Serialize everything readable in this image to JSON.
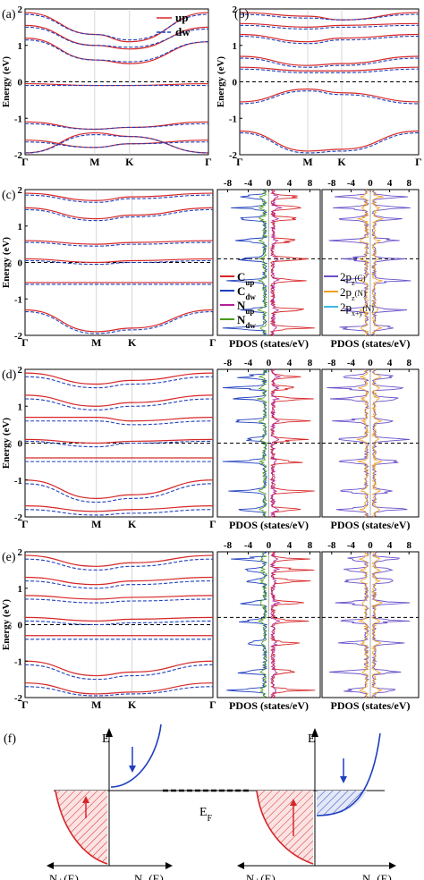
{
  "figure": {
    "panel_labels": [
      "(a)",
      "(b)",
      "(c)",
      "(d)",
      "(e)",
      "(f)"
    ],
    "band_ylabel": "Energy (eV)",
    "band_xticks": [
      "Γ",
      "M",
      "K",
      "Γ"
    ],
    "pdos_xlabel": "PDOS (states/eV)",
    "pdos_xticks": [
      "-8",
      "-4",
      "0",
      "4",
      "8"
    ],
    "band_yticks": [
      "2",
      "1",
      "0",
      "-1",
      "-2"
    ],
    "legend_spin": [
      {
        "label": "up",
        "color": "#d62728",
        "style": "solid"
      },
      {
        "label": "dw",
        "color": "#1f3fbf",
        "style": "dashed"
      }
    ],
    "legend_pdos_atoms": [
      {
        "label": "C",
        "sub": "up",
        "color": "#d62728"
      },
      {
        "label": "C",
        "sub": "dw",
        "color": "#1f3fbf"
      },
      {
        "label": "N",
        "sub": "up",
        "color": "#b0209a"
      },
      {
        "label": "N",
        "sub": "dw",
        "color": "#4a9a1a"
      }
    ],
    "legend_pdos_orbitals": [
      {
        "label": "2p",
        "sub": "z",
        "suffix": "(C)",
        "color": "#6a4fc8"
      },
      {
        "label": "2p",
        "sub": "z",
        "suffix": "(N)",
        "color": "#f0a020"
      },
      {
        "label": "2p",
        "sub": "x+y",
        "suffix": "(N)",
        "color": "#3fb8e0"
      }
    ],
    "schematic": {
      "e_axis_label": "E",
      "fermi_label": "E",
      "fermi_sub": "F",
      "left_axis_labels": [
        "N₊(E)",
        "N₋(E)"
      ],
      "right_axis_labels": [
        "N₊(E)",
        "N₋(E)"
      ]
    }
  },
  "chart_data": [
    {
      "panel": "(a)",
      "type": "line",
      "xlabel": "",
      "ylabel": "Energy (eV)",
      "ylim": [
        -2,
        2
      ],
      "x": [
        "Γ",
        "M",
        "K",
        "Γ"
      ],
      "series": [
        {
          "name": "up"
        },
        {
          "name": "dw"
        }
      ],
      "bands_up": [
        [
          1.9,
          1.3,
          1.1,
          1.9
        ],
        [
          1.55,
          1.0,
          0.9,
          1.5
        ],
        [
          1.2,
          0.6,
          0.5,
          1.1
        ],
        [
          -0.05,
          -0.1,
          -0.1,
          -0.05
        ],
        [
          -1.1,
          -1.3,
          -1.25,
          -1.1
        ],
        [
          -1.6,
          -1.8,
          -1.7,
          -1.6
        ],
        [
          -1.95,
          -1.4,
          -1.5,
          -1.95
        ]
      ],
      "bands_dw": [
        [
          1.85,
          1.3,
          1.15,
          1.85
        ],
        [
          1.5,
          1.0,
          0.95,
          1.45
        ],
        [
          1.15,
          0.6,
          0.55,
          1.1
        ],
        [
          -0.1,
          -0.1,
          -0.1,
          -0.1
        ],
        [
          -1.15,
          -1.3,
          -1.25,
          -1.15
        ],
        [
          -1.65,
          -1.8,
          -1.7,
          -1.65
        ],
        [
          -1.95,
          -1.45,
          -1.5,
          -1.95
        ]
      ]
    },
    {
      "panel": "(b)",
      "type": "line",
      "xlabel": "",
      "ylabel": "Energy (eV)",
      "ylim": [
        -2,
        2
      ],
      "x": [
        "Γ",
        "M",
        "K",
        "Γ"
      ],
      "bands_up": [
        [
          1.9,
          1.8,
          1.7,
          1.9
        ],
        [
          1.6,
          1.5,
          1.55,
          1.6
        ],
        [
          1.3,
          1.1,
          1.2,
          1.3
        ],
        [
          0.7,
          0.45,
          0.5,
          0.7
        ],
        [
          0.4,
          0.3,
          0.3,
          0.4
        ],
        [
          -0.55,
          -0.2,
          -0.3,
          -0.55
        ],
        [
          -1.35,
          -1.9,
          -1.85,
          -1.35
        ]
      ],
      "bands_dw": [
        [
          1.85,
          1.75,
          1.7,
          1.85
        ],
        [
          1.55,
          1.45,
          1.5,
          1.55
        ],
        [
          1.25,
          1.05,
          1.15,
          1.25
        ],
        [
          0.65,
          0.4,
          0.45,
          0.65
        ],
        [
          0.35,
          0.25,
          0.25,
          0.35
        ],
        [
          -0.6,
          -0.25,
          -0.35,
          -0.6
        ],
        [
          -1.4,
          -1.95,
          -1.9,
          -1.4
        ]
      ]
    },
    {
      "panel": "(c)",
      "type": "line",
      "xlabel": "",
      "ylabel": "Energy (eV)",
      "ylim": [
        -2,
        2
      ],
      "x": [
        "Γ",
        "M",
        "K",
        "Γ"
      ],
      "bands_up": [
        [
          1.9,
          1.7,
          1.8,
          1.9
        ],
        [
          1.5,
          1.2,
          1.3,
          1.5
        ],
        [
          0.6,
          0.5,
          0.55,
          0.6
        ],
        [
          0.1,
          0.0,
          0.05,
          0.1
        ],
        [
          -0.55,
          -0.55,
          -0.55,
          -0.55
        ],
        [
          -1.3,
          -1.9,
          -1.8,
          -1.3
        ]
      ],
      "bands_dw": [
        [
          1.85,
          1.65,
          1.75,
          1.85
        ],
        [
          1.45,
          1.15,
          1.25,
          1.45
        ],
        [
          0.55,
          0.45,
          0.5,
          0.55
        ],
        [
          0.05,
          -0.05,
          0.0,
          0.05
        ],
        [
          -0.6,
          -0.6,
          -0.6,
          -0.6
        ],
        [
          -1.35,
          -1.95,
          -1.85,
          -1.35
        ]
      ]
    },
    {
      "panel": "(d)",
      "type": "line",
      "xlabel": "",
      "ylabel": "Energy (eV)",
      "ylim": [
        -2,
        2
      ],
      "x": [
        "Γ",
        "M",
        "K",
        "Γ"
      ],
      "bands_up": [
        [
          1.9,
          1.6,
          1.7,
          1.9
        ],
        [
          1.3,
          1.0,
          1.1,
          1.3
        ],
        [
          0.7,
          0.7,
          0.6,
          0.7
        ],
        [
          0.1,
          0.0,
          0.05,
          0.1
        ],
        [
          -0.4,
          -0.4,
          -0.4,
          -0.4
        ],
        [
          -1.0,
          -1.5,
          -1.4,
          -1.0
        ],
        [
          -1.7,
          -1.85,
          -1.8,
          -1.7
        ]
      ],
      "bands_dw": [
        [
          1.8,
          1.5,
          1.6,
          1.8
        ],
        [
          1.2,
          0.9,
          1.0,
          1.2
        ],
        [
          0.6,
          0.6,
          0.5,
          0.6
        ],
        [
          0.05,
          -0.1,
          0.0,
          0.05
        ],
        [
          -0.5,
          -0.5,
          -0.5,
          -0.5
        ],
        [
          -1.1,
          -1.6,
          -1.5,
          -1.1
        ],
        [
          -1.8,
          -1.95,
          -1.9,
          -1.8
        ]
      ]
    },
    {
      "panel": "(e)",
      "type": "line",
      "xlabel": "",
      "ylabel": "Energy (eV)",
      "ylim": [
        -2,
        2
      ],
      "x": [
        "Γ",
        "M",
        "K",
        "Γ"
      ],
      "bands_up": [
        [
          1.9,
          1.6,
          1.7,
          1.9
        ],
        [
          1.3,
          1.1,
          1.2,
          1.3
        ],
        [
          0.8,
          0.7,
          0.75,
          0.8
        ],
        [
          0.2,
          0.1,
          0.15,
          0.2
        ],
        [
          -0.3,
          -0.3,
          -0.3,
          -0.3
        ],
        [
          -1.0,
          -1.4,
          -1.3,
          -1.0
        ],
        [
          -1.6,
          -1.9,
          -1.85,
          -1.6
        ]
      ],
      "bands_dw": [
        [
          1.8,
          1.5,
          1.6,
          1.8
        ],
        [
          1.2,
          1.0,
          1.1,
          1.2
        ],
        [
          0.7,
          0.6,
          0.65,
          0.7
        ],
        [
          0.1,
          0.0,
          0.05,
          0.1
        ],
        [
          -0.4,
          -0.4,
          -0.4,
          -0.4
        ],
        [
          -1.1,
          -1.5,
          -1.4,
          -1.1
        ],
        [
          -1.7,
          -1.95,
          -1.9,
          -1.7
        ]
      ]
    }
  ]
}
